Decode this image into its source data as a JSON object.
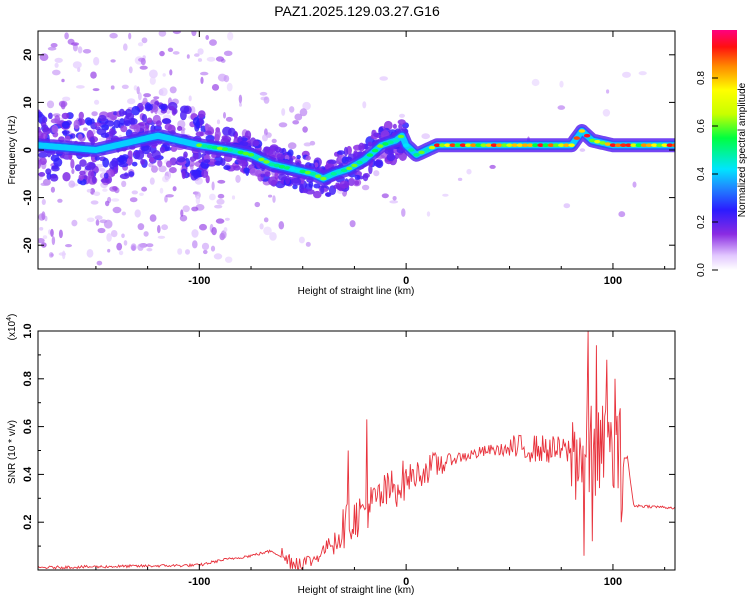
{
  "title": "PAZ1.2025.129.03.27.G16",
  "chart_data": [
    {
      "type": "heatmap",
      "xlabel": "Height of straight line (km)",
      "ylabel": "Frequency (Hz)",
      "xlim": [
        -178,
        130
      ],
      "ylim": [
        -25,
        25
      ],
      "xticks": [
        -100,
        0,
        100
      ],
      "yticks": [
        -20,
        -10,
        0,
        10,
        20
      ],
      "colorbar": {
        "label": "Normalized spectral amplitude",
        "range": [
          0,
          1
        ],
        "ticks": [
          "0.0",
          "0.2",
          "0.4",
          "0.6",
          "0.8"
        ]
      },
      "ridge": {
        "x": [
          -178,
          -150,
          -120,
          -100,
          -85,
          -75,
          -65,
          -55,
          -45,
          -40,
          -35,
          -28,
          -20,
          -12,
          -5,
          -2,
          0,
          5,
          15,
          30,
          60,
          80,
          85,
          90,
          100,
          115,
          130
        ],
        "y": [
          1,
          0,
          3,
          1,
          0,
          -1,
          -3,
          -4,
          -5,
          -6,
          -5,
          -4,
          -2,
          1,
          2,
          3,
          1,
          -1,
          1,
          1,
          1,
          1,
          4,
          2,
          1,
          1,
          1
        ]
      }
    },
    {
      "type": "line",
      "xlabel": "Height of straight line (km)",
      "ylabel": "SNR (10 * v/v)",
      "multiplier": "(x10",
      "multiplier_exp": "4",
      "multiplier_close": ")",
      "xlim": [
        -178,
        130
      ],
      "ylim": [
        0,
        1.0
      ],
      "xticks": [
        -100,
        0,
        100
      ],
      "yticks": [
        0.2,
        0.4,
        0.6,
        0.8,
        1.0
      ],
      "ytick_labels": [
        "0.2",
        "0.4",
        "0.6",
        "0.8",
        "1.0"
      ],
      "color": "#e8323c",
      "trend": {
        "x": [
          -178,
          -100,
          -90,
          -75,
          -65,
          -55,
          -45,
          -38,
          -30,
          -20,
          -10,
          0,
          10,
          20,
          40,
          60,
          75,
          85,
          95,
          104,
          107,
          110,
          130
        ],
        "y": [
          0.01,
          0.02,
          0.04,
          0.06,
          0.08,
          0.03,
          0.04,
          0.1,
          0.18,
          0.25,
          0.32,
          0.38,
          0.42,
          0.46,
          0.5,
          0.51,
          0.5,
          0.49,
          0.48,
          0.47,
          0.47,
          0.27,
          0.26
        ]
      },
      "spikes": [
        {
          "x": -19,
          "y": 0.63
        },
        {
          "x": -28,
          "y": 0.5
        },
        {
          "x": 86,
          "y": 0.06
        },
        {
          "x": 88,
          "y": 1.0
        },
        {
          "x": 90,
          "y": 0.12
        },
        {
          "x": 92,
          "y": 0.94
        },
        {
          "x": 97,
          "y": 0.88
        },
        {
          "x": 101,
          "y": 0.8
        },
        {
          "x": 104,
          "y": 0.2
        }
      ]
    }
  ]
}
